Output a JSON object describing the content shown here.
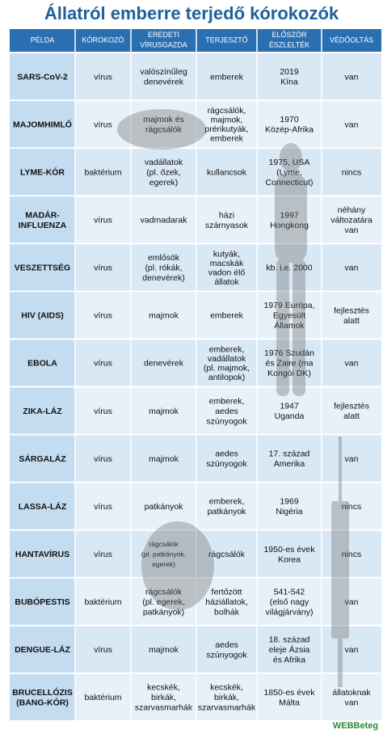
{
  "title": "Állatról emberre terjedő kórokozók",
  "table": {
    "header": [
      [
        "PÉLDA"
      ],
      [
        "KÓROKOZÓ"
      ],
      [
        "EREDETI",
        "VÍRUSGAZDA"
      ],
      [
        "TERJESZTŐ"
      ],
      [
        "ELŐSZÖR",
        "ÉSZLELTÉK"
      ],
      [
        "VÉDŐOLTÁS"
      ]
    ],
    "rows": [
      [
        [
          "SARS-CoV-2"
        ],
        [
          "vírus"
        ],
        [
          "valószínűleg",
          "denevérek"
        ],
        [
          "emberek"
        ],
        [
          "2019",
          "Kína"
        ],
        [
          "van"
        ]
      ],
      [
        [
          "MAJOMHIMLŐ"
        ],
        [
          "vírus"
        ],
        [
          "majmok és",
          "rágcsálók"
        ],
        [
          "rágcsálók,",
          "majmok,",
          "prérikutyák,",
          "emberek"
        ],
        [
          "1970",
          "Közép-Afrika"
        ],
        [
          "van"
        ]
      ],
      [
        [
          "LYME-KÓR"
        ],
        [
          "baktérium"
        ],
        [
          "vadállatok",
          "(pl. őzek,",
          "egerek)"
        ],
        [
          "kullancsok"
        ],
        [
          "1975, USA",
          "(Lyme,",
          "Connecticut)"
        ],
        [
          "nincs"
        ]
      ],
      [
        [
          "MADÁR-",
          "INFLUENZA"
        ],
        [
          "vírus"
        ],
        [
          "vadmadarak"
        ],
        [
          "házi",
          "szárnyasok"
        ],
        [
          "1997",
          "Hongkong"
        ],
        [
          "néhány",
          "változatára",
          "van"
        ]
      ],
      [
        [
          "VESZETTSÉG"
        ],
        [
          "vírus"
        ],
        [
          "emlősök",
          "(pl. rókák,",
          "denevérek)"
        ],
        [
          "kutyák,",
          "macskák",
          "vadon élő",
          "állatok"
        ],
        [
          "kb. i.e. 2000"
        ],
        [
          "van"
        ]
      ],
      [
        [
          "HIV (AIDS)"
        ],
        [
          "vírus"
        ],
        [
          "majmok"
        ],
        [
          "emberek"
        ],
        [
          "1979 Európa,",
          "Egyesült",
          "Államok"
        ],
        [
          "fejlesztés",
          "alatt"
        ]
      ],
      [
        [
          "EBOLA"
        ],
        [
          "vírus"
        ],
        [
          "denevérek"
        ],
        [
          "emberek,",
          "vadállatok",
          "(pl. majmok,",
          "antilopok)"
        ],
        [
          "1976 Szudán",
          "és Zaire (ma",
          "Kongói DK)"
        ],
        [
          "van"
        ]
      ],
      [
        [
          "ZIKA-LÁZ"
        ],
        [
          "vírus"
        ],
        [
          "majmok"
        ],
        [
          "emberek,",
          "aedes",
          "szúnyogok"
        ],
        [
          "1947",
          "Uganda"
        ],
        [
          "fejlesztés",
          "alatt"
        ]
      ],
      [
        [
          "SÁRGALÁZ"
        ],
        [
          "vírus"
        ],
        [
          "majmok"
        ],
        [
          "aedes",
          "szúnyogok"
        ],
        [
          "17. század",
          "Amerika"
        ],
        [
          "van"
        ]
      ],
      [
        [
          "LASSA-LÁZ"
        ],
        [
          "vírus"
        ],
        [
          "patkányok"
        ],
        [
          "emberek,",
          "patkányok"
        ],
        [
          "1969",
          "Nigéria"
        ],
        [
          "nincs"
        ]
      ],
      [
        [
          "HANTAVÍRUS"
        ],
        [
          "vírus"
        ],
        [
          "rágcsálók",
          "(pl. patkányok,",
          "egerek)"
        ],
        [
          "rágcsálók"
        ],
        [
          "1950-es évek",
          "Korea"
        ],
        [
          "nincs"
        ]
      ],
      [
        [
          "BUBÓPESTIS"
        ],
        [
          "baktérium"
        ],
        [
          "rágcsálók",
          "(pl. egerek,",
          "patkányok)"
        ],
        [
          "fertőzött",
          "háziállatok,",
          "bolhák"
        ],
        [
          "541-542",
          "(első nagy",
          "világjárvány)"
        ],
        [
          "van"
        ]
      ],
      [
        [
          "DENGUE-LÁZ"
        ],
        [
          "vírus"
        ],
        [
          "majmok"
        ],
        [
          "aedes",
          "szúnyogok"
        ],
        [
          "18. század",
          "eleje Ázsia",
          "és Afrika"
        ],
        [
          "van"
        ]
      ],
      [
        [
          "BRUCELLÓZIS",
          "(BANG-KÓR)"
        ],
        [
          "baktérium"
        ],
        [
          "kecskék,",
          "birkák,",
          "szarvasmarhák"
        ],
        [
          "kecskék,",
          "birkák,",
          "szarvasmarhák"
        ],
        [
          "1850-es évek",
          "Málta"
        ],
        [
          "állatoknak",
          "van"
        ]
      ]
    ]
  },
  "logo": "WEBBeteg"
}
